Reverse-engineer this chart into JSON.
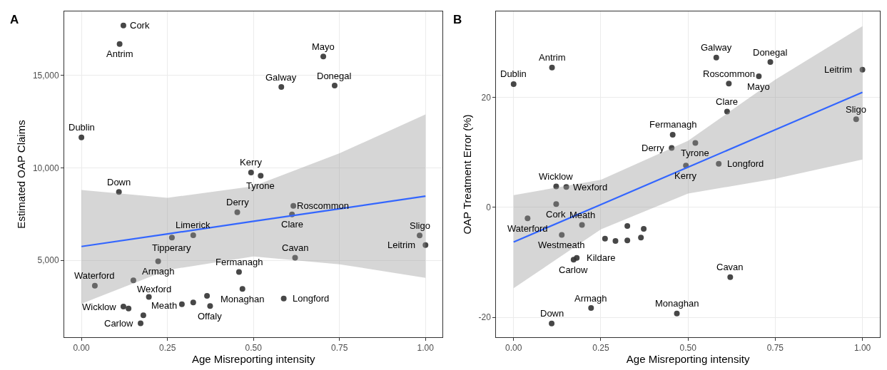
{
  "chart_data": [
    {
      "type": "scatter",
      "title": "A",
      "xlabel": "Age Misreporting intensity",
      "ylabel": "Estimated OAP Claims",
      "grid": true,
      "xlim": [
        -0.05,
        1.05
      ],
      "xticks": [
        {
          "value": 0,
          "label": "0.00"
        },
        {
          "value": 0.25,
          "label": "0.25"
        },
        {
          "value": 0.5,
          "label": "0.50"
        },
        {
          "value": 0.75,
          "label": "0.75"
        },
        {
          "value": 1,
          "label": "1.00"
        }
      ],
      "ylim": [
        845,
        18460
      ],
      "yticks": [
        {
          "value": 5000,
          "label": "5,000"
        },
        {
          "value": 10000,
          "label": "10,000"
        },
        {
          "value": 15000,
          "label": "15,000"
        }
      ],
      "series": [
        {
          "marker": "circle",
          "color": "#333333",
          "x": [
            0.122,
            0.111,
            0,
            0.109,
            0.493,
            0.521,
            0.453,
            0.616,
            0.612,
            0.263,
            0.325,
            0.223,
            0.458,
            0.039,
            0.151,
            0.468,
            0.365,
            0.196,
            0.122,
            0.137,
            0.292,
            0.325,
            0.374,
            0.18,
            0.172,
            0.581,
            0.736,
            0.703,
            0.983,
            1.0,
            0.621,
            0.588
          ],
          "values": [
            17700,
            16700,
            11650,
            8700,
            9750,
            9580,
            7600,
            7950,
            7480,
            6230,
            6360,
            4950,
            4370,
            3630,
            3920,
            3460,
            3080,
            3020,
            2500,
            2400,
            2630,
            2720,
            2530,
            2030,
            1600,
            14370,
            14450,
            16020,
            6350,
            5830,
            5140,
            2940
          ]
        },
        {
          "type": "line",
          "color": "#3366ff",
          "x": [
            0,
            0.25,
            0.5,
            0.75,
            1
          ],
          "values": [
            5750,
            6430,
            7110,
            7790,
            8470
          ],
          "lower": [
            2660,
            4480,
            5210,
            4790,
            4050
          ],
          "upper": [
            8800,
            8380,
            9010,
            10790,
            12890
          ]
        }
      ],
      "annotations": [
        {
          "text": "Cork",
          "x": 0.122,
          "y": 17700
        },
        {
          "text": "Antrim",
          "x": 0.111,
          "y": 16700
        },
        {
          "text": "Dublin",
          "x": 0,
          "y": 11650
        },
        {
          "text": "Down",
          "x": 0.109,
          "y": 8700
        },
        {
          "text": "Kerry",
          "x": 0.493,
          "y": 9750
        },
        {
          "text": "Tyrone",
          "x": 0.521,
          "y": 9580
        },
        {
          "text": "Derry",
          "x": 0.453,
          "y": 7600
        },
        {
          "text": "Roscommon",
          "x": 0.616,
          "y": 7950
        },
        {
          "text": "Clare",
          "x": 0.612,
          "y": 7480
        },
        {
          "text": "Tipperary",
          "x": 0.263,
          "y": 6230
        },
        {
          "text": "Limerick",
          "x": 0.325,
          "y": 6360
        },
        {
          "text": "Armagh",
          "x": 0.223,
          "y": 4950
        },
        {
          "text": "Fermanagh",
          "x": 0.458,
          "y": 4370
        },
        {
          "text": "Waterford",
          "x": 0.039,
          "y": 3630
        },
        {
          "text": "Wexford",
          "x": 0.151,
          "y": 3920
        },
        {
          "text": "Monaghan",
          "x": 0.468,
          "y": 3460
        },
        {
          "text": "Meath",
          "x": 0.196,
          "y": 3020
        },
        {
          "text": "Wicklow",
          "x": 0.122,
          "y": 2500
        },
        {
          "text": "Offaly",
          "x": 0.374,
          "y": 2530
        },
        {
          "text": "Carlow",
          "x": 0.172,
          "y": 1600
        },
        {
          "text": "Galway",
          "x": 0.581,
          "y": 14370
        },
        {
          "text": "Donegal",
          "x": 0.736,
          "y": 14450
        },
        {
          "text": "Mayo",
          "x": 0.703,
          "y": 16020
        },
        {
          "text": "Sligo",
          "x": 0.983,
          "y": 6350
        },
        {
          "text": "Leitrim",
          "x": 1.0,
          "y": 5830
        },
        {
          "text": "Cavan",
          "x": 0.621,
          "y": 5140
        },
        {
          "text": "Longford",
          "x": 0.588,
          "y": 2940
        }
      ]
    },
    {
      "type": "scatter",
      "title": "B",
      "xlabel": "Age Misreporting intensity",
      "ylabel": "OAP Treatment Error (%)",
      "grid": true,
      "xlim": [
        -0.05,
        1.05
      ],
      "xticks": [
        {
          "value": 0,
          "label": "0.00"
        },
        {
          "value": 0.25,
          "label": "0.25"
        },
        {
          "value": 0.5,
          "label": "0.50"
        },
        {
          "value": 0.75,
          "label": "0.75"
        },
        {
          "value": 1,
          "label": "1.00"
        }
      ],
      "ylim": [
        -23.6,
        35.6
      ],
      "yticks": [
        -20,
        0,
        20
      ],
      "series": [
        {
          "marker": "circle",
          "color": "#333333",
          "x": [
            0.11,
            0,
            0.456,
            0.453,
            0.122,
            0.151,
            0.122,
            0.04,
            0.196,
            0.138,
            0.262,
            0.292,
            0.326,
            0.326,
            0.373,
            0.365,
            0.172,
            0.181,
            0.222,
            0.109,
            0.468,
            0.581,
            0.736,
            0.703,
            0.617,
            0.612,
            1.0,
            0.982,
            0.521,
            0.494,
            0.588,
            0.621
          ],
          "values": [
            25.4,
            22.4,
            13.2,
            10.8,
            3.8,
            3.7,
            0.6,
            -2.0,
            -3.2,
            -5.0,
            -5.7,
            -6.1,
            -3.4,
            -6.0,
            -3.9,
            -5.5,
            -9.5,
            -9.2,
            -18.3,
            -21.1,
            -19.3,
            27.2,
            26.4,
            23.8,
            22.5,
            17.4,
            25.0,
            16.0,
            11.7,
            7.6,
            7.9,
            -12.7
          ]
        },
        {
          "type": "line",
          "color": "#3366ff",
          "x": [
            0,
            0.25,
            0.5,
            0.75,
            1
          ],
          "values": [
            -6.3,
            0.5,
            7.3,
            14.1,
            20.9
          ],
          "lower": [
            -14.7,
            -4.0,
            2.5,
            5.2,
            8.7
          ],
          "upper": [
            2.2,
            5.0,
            12.1,
            23.2,
            32.9
          ]
        }
      ],
      "annotations": [
        {
          "text": "Antrim",
          "x": 0.11,
          "y": 25.4
        },
        {
          "text": "Dublin",
          "x": 0,
          "y": 22.4
        },
        {
          "text": "Fermanagh",
          "x": 0.456,
          "y": 13.2
        },
        {
          "text": "Derry",
          "x": 0.453,
          "y": 10.8
        },
        {
          "text": "Wicklow",
          "x": 0.122,
          "y": 3.8
        },
        {
          "text": "Wexford",
          "x": 0.151,
          "y": 3.7
        },
        {
          "text": "Cork",
          "x": 0.122,
          "y": 0.6
        },
        {
          "text": "Waterford",
          "x": 0.04,
          "y": -2.0
        },
        {
          "text": "Meath",
          "x": 0.196,
          "y": -3.2
        },
        {
          "text": "Westmeath",
          "x": 0.138,
          "y": -5.0
        },
        {
          "text": "Carlow",
          "x": 0.172,
          "y": -9.5
        },
        {
          "text": "Kildare",
          "x": 0.181,
          "y": -9.2
        },
        {
          "text": "Armagh",
          "x": 0.222,
          "y": -18.3
        },
        {
          "text": "Down",
          "x": 0.109,
          "y": -21.1
        },
        {
          "text": "Monaghan",
          "x": 0.468,
          "y": -19.3
        },
        {
          "text": "Galway",
          "x": 0.581,
          "y": 27.2
        },
        {
          "text": "Donegal",
          "x": 0.736,
          "y": 26.4
        },
        {
          "text": "Mayo",
          "x": 0.703,
          "y": 23.8
        },
        {
          "text": "Roscommon",
          "x": 0.617,
          "y": 22.5
        },
        {
          "text": "Clare",
          "x": 0.612,
          "y": 17.4
        },
        {
          "text": "Leitrim",
          "x": 1.0,
          "y": 25.0
        },
        {
          "text": "Sligo",
          "x": 0.982,
          "y": 16.0
        },
        {
          "text": "Tyrone",
          "x": 0.521,
          "y": 11.7
        },
        {
          "text": "Kerry",
          "x": 0.494,
          "y": 7.6
        },
        {
          "text": "Longford",
          "x": 0.588,
          "y": 7.9
        },
        {
          "text": "Cavan",
          "x": 0.621,
          "y": -12.7
        }
      ]
    }
  ]
}
